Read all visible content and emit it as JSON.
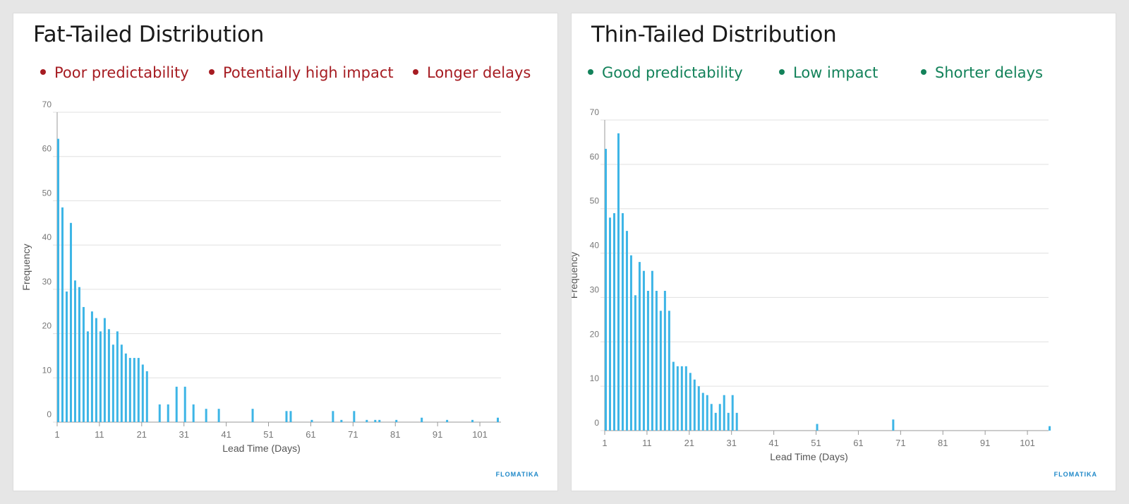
{
  "panels": [
    {
      "title": "Fat-Tailed Distribution",
      "bullet_color": "#a61c22",
      "bullets": [
        "Poor predictability",
        "Potentially high impact",
        "Longer delays"
      ],
      "brand": "FLOMATIKA"
    },
    {
      "title": "Thin-Tailed Distribution",
      "bullet_color": "#13825a",
      "bullets": [
        "Good predictability",
        "Low impact",
        "Shorter delays"
      ],
      "brand": "FLOMATIKA"
    }
  ],
  "bar_color": "#3db5e6",
  "chart_data": [
    {
      "type": "bar",
      "title": "Fat-Tailed Distribution",
      "xlabel": "Lead Time (Days)",
      "ylabel": "Frequency",
      "ylim": [
        0,
        70
      ],
      "xlim": [
        1,
        106
      ],
      "y_ticks": [
        0,
        10,
        20,
        30,
        40,
        50,
        60,
        70
      ],
      "x_ticks": [
        1,
        11,
        21,
        31,
        41,
        51,
        61,
        71,
        81,
        91,
        101
      ],
      "grid": true,
      "x": [
        1,
        2,
        3,
        4,
        5,
        6,
        7,
        8,
        9,
        10,
        11,
        12,
        13,
        14,
        15,
        16,
        17,
        18,
        19,
        20,
        21,
        22,
        25,
        27,
        29,
        31,
        33,
        36,
        39,
        47,
        55,
        56,
        61,
        66,
        68,
        71,
        74,
        76,
        77,
        81,
        87,
        93,
        99,
        105
      ],
      "values": [
        64,
        48.5,
        29.5,
        45,
        32,
        30.5,
        26,
        20.5,
        25,
        23.5,
        20.5,
        23.5,
        21,
        17.5,
        20.5,
        17.5,
        15.5,
        14.5,
        14.5,
        14.5,
        13,
        11.5,
        4,
        4,
        8,
        8,
        4,
        3,
        3,
        3,
        2.5,
        2.5,
        0.5,
        2.5,
        0.5,
        2.5,
        0.5,
        0.5,
        0.5,
        0.5,
        1,
        0.5,
        0.5,
        1
      ]
    },
    {
      "type": "bar",
      "title": "Thin-Tailed Distribution",
      "xlabel": "Lead Time (Days)",
      "ylabel": "Frequency",
      "ylim": [
        0,
        70
      ],
      "xlim": [
        1,
        106
      ],
      "y_ticks": [
        0,
        10,
        20,
        30,
        40,
        50,
        60,
        70
      ],
      "x_ticks": [
        1,
        11,
        21,
        31,
        41,
        51,
        61,
        71,
        81,
        91,
        101
      ],
      "grid": true,
      "x": [
        1,
        2,
        3,
        4,
        5,
        6,
        7,
        8,
        9,
        10,
        11,
        12,
        13,
        14,
        15,
        16,
        17,
        18,
        19,
        20,
        21,
        22,
        23,
        24,
        25,
        26,
        27,
        28,
        29,
        30,
        31,
        32,
        51,
        69,
        106
      ],
      "values": [
        63.5,
        48,
        49,
        67,
        49,
        45,
        39.5,
        30.5,
        38,
        36,
        31.5,
        36,
        31.5,
        27,
        31.5,
        27,
        15.5,
        14.5,
        14.5,
        14.5,
        13,
        11.5,
        10,
        8.5,
        8,
        6,
        4,
        6,
        8,
        4,
        8,
        4,
        1.5,
        2.5,
        1
      ]
    }
  ]
}
